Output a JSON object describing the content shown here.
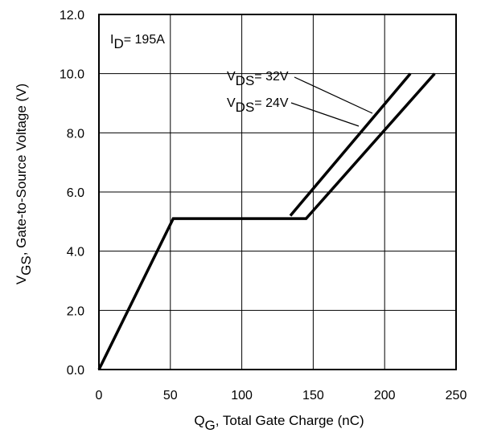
{
  "chart_data": {
    "type": "line",
    "xlabel": {
      "symbol": "Q",
      "sub": "G",
      "text": ",  Total Gate Charge (nC)"
    },
    "ylabel": {
      "symbol": "V",
      "sub": "GS",
      "text": ", Gate-to-Source Voltage (V)"
    },
    "xlim": [
      0,
      250
    ],
    "ylim": [
      0,
      12
    ],
    "x_ticks": [
      "0",
      "50",
      "100",
      "150",
      "200",
      "250"
    ],
    "y_ticks": [
      "0.0",
      "2.0",
      "4.0",
      "6.0",
      "8.0",
      "10.0",
      "12.0"
    ],
    "grid": true,
    "annotations": {
      "id": {
        "symbol": "I",
        "sub": "D",
        "text": "= 195A"
      },
      "vds32": {
        "symbol": "V",
        "sub": "DS",
        "text": "= 32V"
      },
      "vds24": {
        "symbol": "V",
        "sub": "DS",
        "text": "= 24V"
      }
    },
    "series": [
      {
        "points": [
          [
            134,
            5.2
          ],
          [
            218,
            10.0
          ]
        ]
      },
      {
        "points": [
          [
            0,
            0
          ],
          [
            52,
            5.1
          ],
          [
            145,
            5.1
          ],
          [
            235,
            10.0
          ]
        ]
      }
    ],
    "colors": {
      "line": "#000000",
      "grid": "#000000"
    }
  }
}
